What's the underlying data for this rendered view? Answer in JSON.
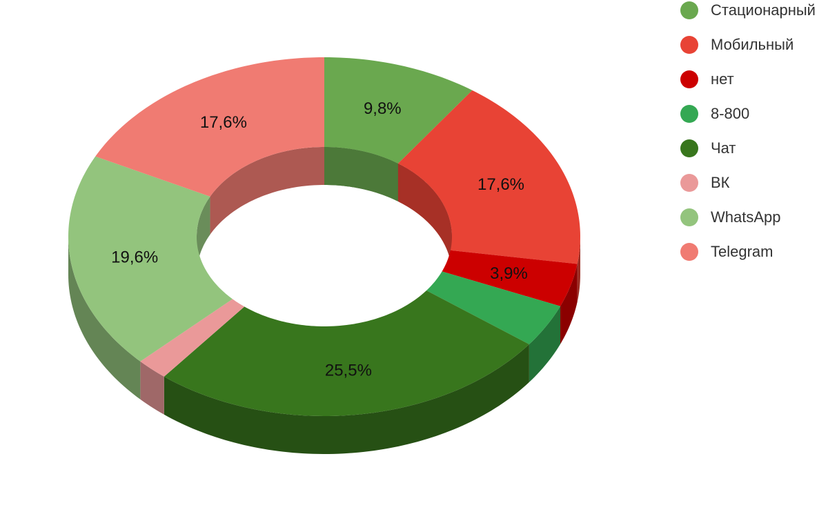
{
  "chart_data": {
    "type": "pie",
    "variant": "3d-donut",
    "title": "",
    "legend_position": "right",
    "series": [
      {
        "name": "Стационарный",
        "value": 9.8,
        "label": "9,8%",
        "color": "#6aa84f"
      },
      {
        "name": "Мобильный",
        "value": 17.6,
        "label": "17,6%",
        "color": "#e84335"
      },
      {
        "name": "нет",
        "value": 3.9,
        "label": "3,9%",
        "color": "#cc0000"
      },
      {
        "name": "8-800",
        "value": 3.9,
        "label": "",
        "color": "#34a853"
      },
      {
        "name": "Чат",
        "value": 25.5,
        "label": "25,5%",
        "color": "#38761d"
      },
      {
        "name": "ВК",
        "value": 2.0,
        "label": "",
        "color": "#ea9999"
      },
      {
        "name": "WhatsApp",
        "value": 19.6,
        "label": "19,6%",
        "color": "#93c47d"
      },
      {
        "name": "Telegram",
        "value": 17.6,
        "label": "17,6%",
        "color": "#f07b72"
      }
    ]
  }
}
